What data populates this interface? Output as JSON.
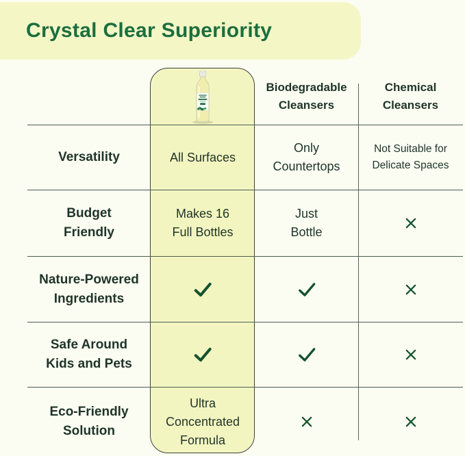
{
  "title": "Crystal Clear Superiority",
  "colors": {
    "page_background": "#fbfcf2",
    "banner_yellow": "#f4f6c5",
    "card_yellow": "#f3f5c1",
    "title_green": "#1b6e3f",
    "text_dark_green": "#1e3427",
    "mark_green": "#14532d",
    "grid_line": "#4d5c51"
  },
  "chart_data": {
    "type": "table",
    "title": "Crystal Clear Superiority",
    "columns": [
      "",
      "Crystal Clear product (bottle image)",
      "Biodegradable Cleansers",
      "Chemical Cleansers"
    ],
    "rows": [
      [
        "Versatility",
        "All Surfaces",
        "Only Countertops",
        "Not Suitable for Delicate Spaces"
      ],
      [
        "Budget Friendly",
        "Makes 16 Full Bottles",
        "Just Bottle",
        "cross"
      ],
      [
        "Nature-Powered Ingredients",
        "check",
        "check",
        "cross"
      ],
      [
        "Safe Around Kids and Pets",
        "check",
        "check",
        "cross"
      ],
      [
        "Eco-Friendly Solution",
        "Ultra Concentrated Formula",
        "cross",
        "cross"
      ]
    ],
    "legend_notes": "check = green checkmark, cross = green X; product column highlighted in pale yellow rounded card with dish-soap bottle image at top"
  },
  "display": {
    "headers": {
      "competitor1": "Biodegradable\nCleansers",
      "competitor2": "Chemical\nCleansers"
    },
    "product_image": "dish-soap-bottle",
    "rows": [
      {
        "label": "Versatility",
        "product": "All Surfaces",
        "competitor1": "Only\nCountertops",
        "competitor2": "Not Suitable for\nDelicate Spaces"
      },
      {
        "label": "Budget\nFriendly",
        "product": "Makes 16\nFull Bottles",
        "competitor1": "Just\nBottle",
        "competitor2_icon": "cross"
      },
      {
        "label": "Nature-Powered\nIngredients",
        "product_icon": "check",
        "competitor1_icon": "check",
        "competitor2_icon": "cross"
      },
      {
        "label": "Safe Around\nKids and Pets",
        "product_icon": "check",
        "competitor1_icon": "check",
        "competitor2_icon": "cross"
      },
      {
        "label": "Eco-Friendly\nSolution",
        "product": "Ultra\nConcentrated\nFormula",
        "competitor1_icon": "cross",
        "competitor2_icon": "cross"
      }
    ]
  }
}
